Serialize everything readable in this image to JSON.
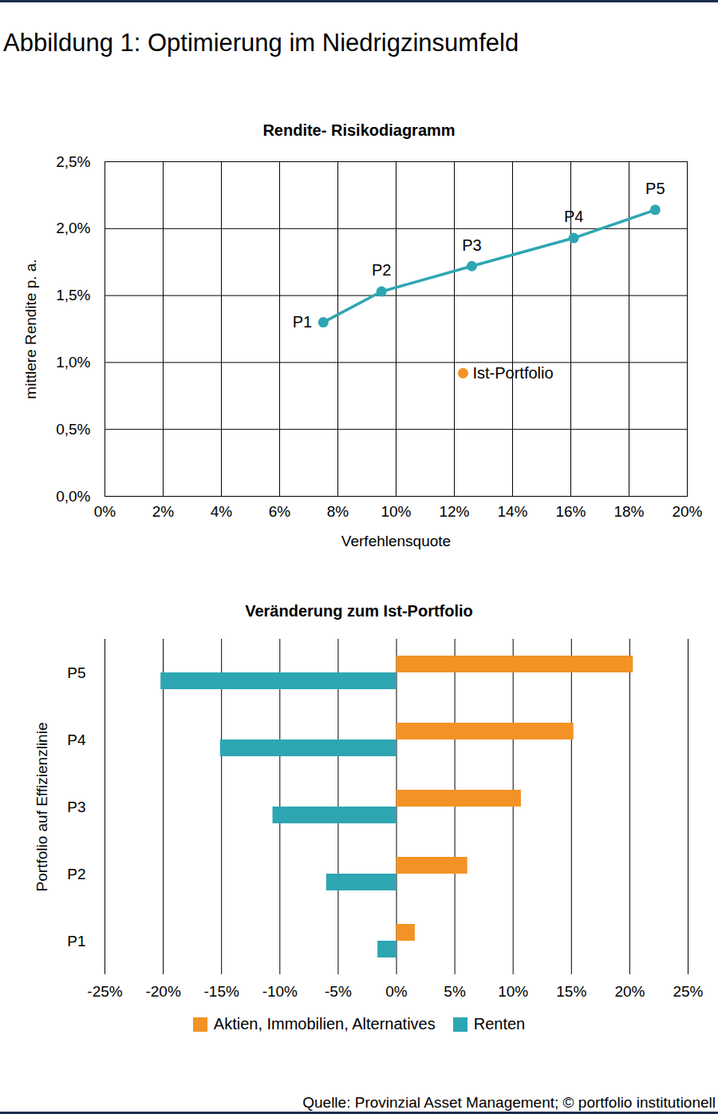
{
  "title": "Abbildung 1: Optimierung im Niedrigzinsumfeld",
  "caption": "Quelle: Provinzial Asset Management; © portfolio institutionell",
  "chart_data": [
    {
      "type": "line",
      "title": "Rendite- Risikodiagramm",
      "x_label": "Verfehlensquote",
      "y_label": "mittlere Rendite p. a.",
      "xlim": [
        0,
        20
      ],
      "xticks": [
        {
          "value": 0,
          "label": "0%"
        },
        {
          "value": 2,
          "label": "2%"
        },
        {
          "value": 4,
          "label": "4%"
        },
        {
          "value": 6,
          "label": "6%"
        },
        {
          "value": 8,
          "label": "8%"
        },
        {
          "value": 10,
          "label": "10%"
        },
        {
          "value": 12,
          "label": "12%"
        },
        {
          "value": 14,
          "label": "14%"
        },
        {
          "value": 16,
          "label": "16%"
        },
        {
          "value": 18,
          "label": "18%"
        },
        {
          "value": 20,
          "label": "20%"
        }
      ],
      "ylim": [
        0,
        2.5
      ],
      "yticks": [
        {
          "value": 0,
          "label": "0,0%"
        },
        {
          "value": 0.5,
          "label": "0,5%"
        },
        {
          "value": 1,
          "label": "1,0%"
        },
        {
          "value": 1.5,
          "label": "1,5%"
        },
        {
          "value": 2,
          "label": "2,0%"
        },
        {
          "value": 2.5,
          "label": "2,5%"
        }
      ],
      "grid": true,
      "series": [
        {
          "type": "line",
          "color": "#2ea6b2",
          "marker": "circle",
          "x": [
            7.5,
            9.5,
            12.6,
            16.1,
            18.9
          ],
          "values": [
            1.3,
            1.53,
            1.72,
            1.93,
            2.14
          ],
          "point_labels": [
            "P1",
            "P2",
            "P3",
            "P4",
            "P5"
          ]
        },
        {
          "name": "Ist-Portfolio",
          "type": "scatter",
          "color": "#f39325",
          "marker": "circle",
          "x": [
            12.3
          ],
          "values": [
            0.92
          ]
        }
      ]
    },
    {
      "type": "bar",
      "orientation": "horizontal",
      "title": "Veränderung zum Ist-Portfolio",
      "y_label": "Portfolio auf Effizienzlinie",
      "categories": [
        "P5",
        "P4",
        "P3",
        "P2",
        "P1"
      ],
      "xlim": [
        -25,
        25
      ],
      "xticks": [
        {
          "value": -25,
          "label": "-25%"
        },
        {
          "value": -20,
          "label": "-20%"
        },
        {
          "value": -15,
          "label": "-15%"
        },
        {
          "value": -10,
          "label": "-10%"
        },
        {
          "value": -5,
          "label": "-5%"
        },
        {
          "value": 0,
          "label": "0%"
        },
        {
          "value": 5,
          "label": "5%"
        },
        {
          "value": 10,
          "label": "10%"
        },
        {
          "value": 15,
          "label": "15%"
        },
        {
          "value": 20,
          "label": "20%"
        },
        {
          "value": 25,
          "label": "25%"
        }
      ],
      "grid": true,
      "legend": "bottom",
      "series": [
        {
          "name": "Aktien, Immobilien, Alternatives",
          "color": "#f39325",
          "values": [
            20.3,
            15.2,
            10.7,
            6.1,
            1.6
          ]
        },
        {
          "name": "Renten",
          "color": "#2ea6b2",
          "values": [
            -20.2,
            -15.1,
            -10.6,
            -6.0,
            -1.6
          ]
        }
      ]
    }
  ]
}
